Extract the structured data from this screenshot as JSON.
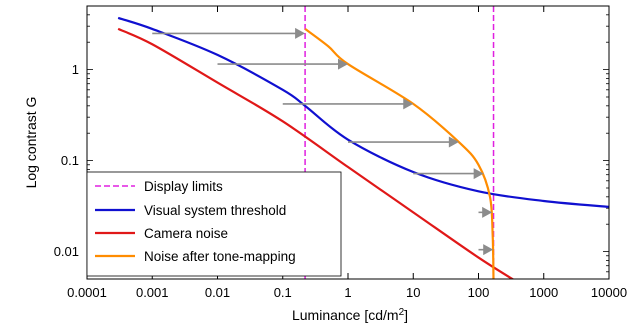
{
  "chart_data": {
    "type": "line",
    "xlabel": "Luminance [cd/m",
    "xlabel_sup": "2",
    "xlabel_end": "]",
    "ylabel": "Log contrast G",
    "x_scale": "log",
    "y_scale": "log",
    "xlim": [
      0.0001,
      10000
    ],
    "ylim": [
      0.005,
      5
    ],
    "x_ticks": [
      0.0001,
      0.001,
      0.01,
      0.1,
      1,
      10,
      100,
      1000,
      10000
    ],
    "x_tick_labels": [
      "0.0001",
      "0.001",
      "0.01",
      "0.1",
      "1",
      "10",
      "100",
      "1000",
      "10000"
    ],
    "y_ticks": [
      0.01,
      0.1,
      1
    ],
    "y_tick_labels": [
      "0.01",
      "0.1",
      "1"
    ],
    "grid": false,
    "legend_position": "bottom-left",
    "display_limits": [
      0.22,
      170
    ],
    "series": [
      {
        "name": "Display limits",
        "color": "#e020e0",
        "style": "dashed"
      },
      {
        "name": "Visual system threshold",
        "color": "#1010d0",
        "style": "solid",
        "points": [
          [
            0.0003,
            3.7
          ],
          [
            0.001,
            2.8
          ],
          [
            0.01,
            1.45
          ],
          [
            0.1,
            0.6
          ],
          [
            0.22,
            0.4
          ],
          [
            1,
            0.17
          ],
          [
            10,
            0.075
          ],
          [
            100,
            0.046
          ],
          [
            1000,
            0.036
          ],
          [
            10000,
            0.031
          ]
        ]
      },
      {
        "name": "Camera noise",
        "color": "#e01818",
        "style": "solid",
        "points": [
          [
            0.0003,
            2.8
          ],
          [
            0.001,
            1.9
          ],
          [
            0.01,
            0.72
          ],
          [
            0.1,
            0.27
          ],
          [
            1,
            0.085
          ],
          [
            10,
            0.027
          ],
          [
            100,
            0.0086
          ],
          [
            400,
            0.0046
          ]
        ]
      },
      {
        "name": "Noise after tone-mapping",
        "color": "#ff8c00",
        "style": "solid",
        "points": [
          [
            0.22,
            2.8
          ],
          [
            0.5,
            1.8
          ],
          [
            1,
            1.15
          ],
          [
            10,
            0.42
          ],
          [
            50,
            0.16
          ],
          [
            100,
            0.09
          ],
          [
            150,
            0.04
          ],
          [
            165,
            0.015
          ],
          [
            170,
            0.0045
          ]
        ]
      }
    ],
    "arrows": [
      {
        "y": 2.5,
        "x_from": 0.001,
        "x_to": 0.22
      },
      {
        "y": 1.15,
        "x_from": 0.01,
        "x_to": 1.0
      },
      {
        "y": 0.42,
        "x_from": 0.1,
        "x_to": 10
      },
      {
        "y": 0.16,
        "x_from": 1,
        "x_to": 50
      },
      {
        "y": 0.072,
        "x_from": 10,
        "x_to": 120
      },
      {
        "y": 0.027,
        "x_from": 100,
        "x_to": 162
      },
      {
        "y": 0.0105,
        "x_from": 100,
        "x_to": 168
      }
    ],
    "arrow_color": "#8c8c8c"
  }
}
